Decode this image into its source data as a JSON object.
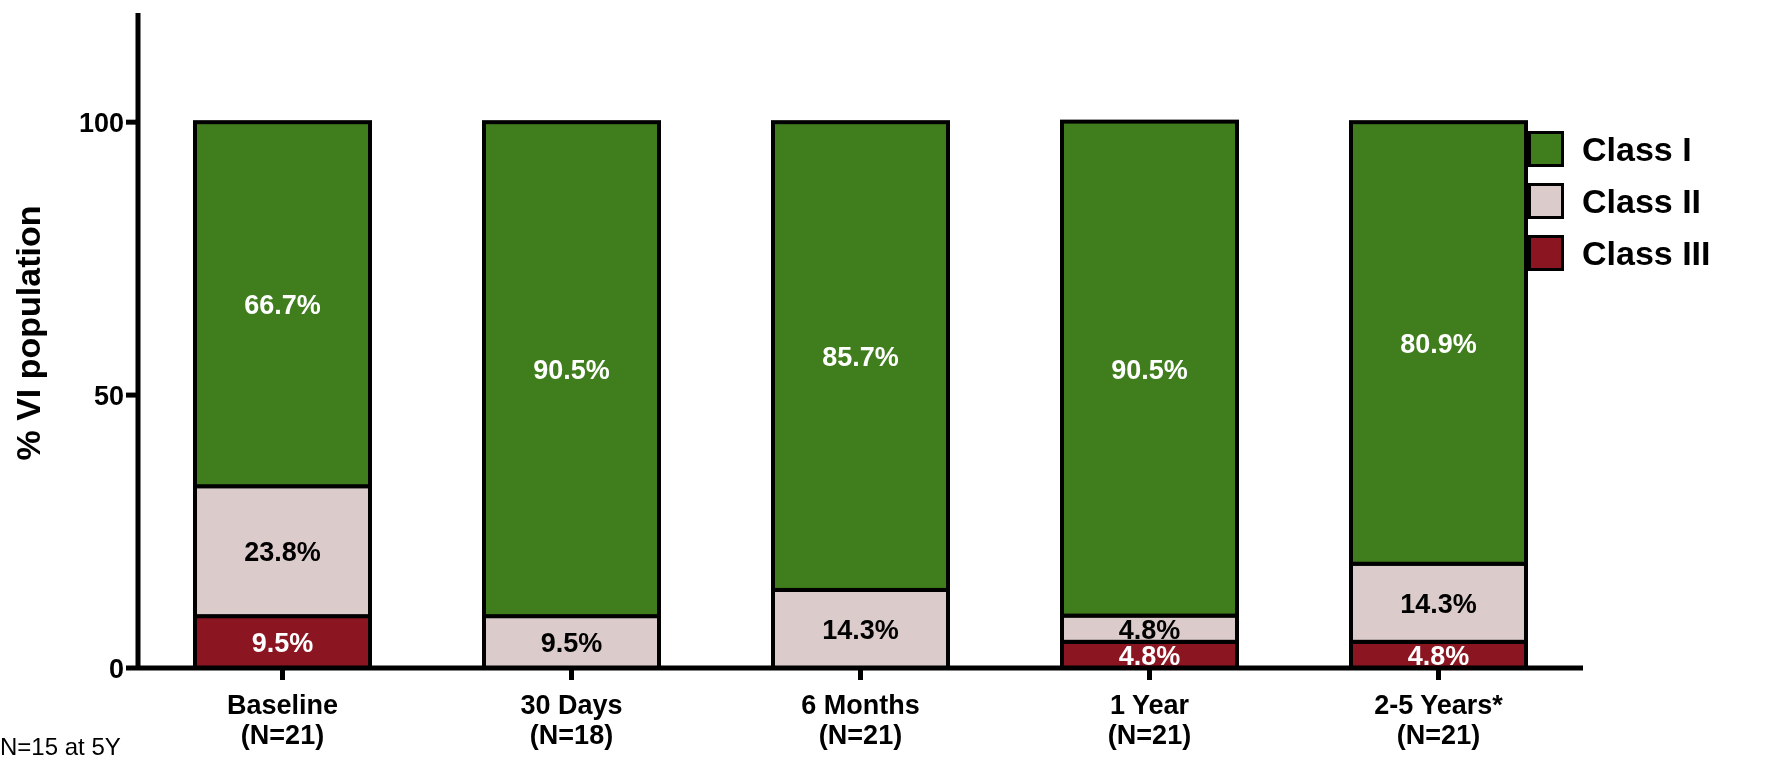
{
  "chart_data": {
    "type": "bar",
    "stacked": true,
    "ylabel": "% VI population",
    "categories": [
      "Baseline\n(N=21)",
      "30 Days\n(N=18)",
      "6 Months\n(N=21)",
      "1 Year\n(N=21)",
      "2-5 Years*\n(N=21)"
    ],
    "series": [
      {
        "name": "Class III",
        "color": "#8b1520",
        "values": [
          9.5,
          null,
          null,
          4.8,
          4.8
        ],
        "value_labels": [
          "9.5%",
          null,
          null,
          "4.8%",
          "4.8%"
        ]
      },
      {
        "name": "Class II",
        "color": "#dbcbcb",
        "values": [
          23.8,
          9.5,
          14.3,
          4.8,
          14.3
        ],
        "value_labels": [
          "23.8%",
          "9.5%",
          "14.3%",
          "4.8%",
          "14.3%"
        ]
      },
      {
        "name": "Class I",
        "color": "#3f7d1d",
        "values": [
          66.7,
          90.5,
          85.7,
          90.5,
          80.9
        ],
        "value_labels": [
          "66.7%",
          "90.5%",
          "85.7%",
          "90.5%",
          "80.9%"
        ]
      }
    ],
    "ylim": [
      0,
      120
    ],
    "yticks": [
      0,
      50,
      100
    ],
    "grid": false,
    "legend": "top right",
    "annotations": [
      "N=15 at 5Y"
    ]
  }
}
